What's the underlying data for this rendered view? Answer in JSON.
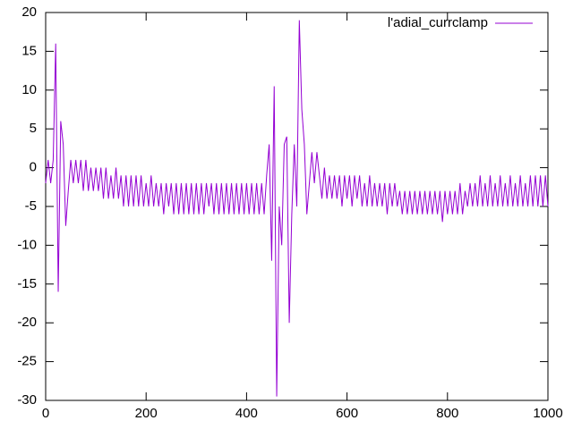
{
  "chart_data": {
    "type": "line",
    "legend": "top-right",
    "xlim": [
      0,
      1000
    ],
    "xticks": [
      0,
      200,
      400,
      600,
      800,
      1000
    ],
    "ylim": [
      -30,
      20
    ],
    "yticks": [
      -30,
      -25,
      -20,
      -15,
      -10,
      -5,
      0,
      5,
      10,
      15,
      20
    ],
    "x": [
      0,
      5,
      10,
      15,
      20,
      25,
      30,
      35,
      40,
      45,
      50,
      55,
      60,
      65,
      70,
      75,
      80,
      85,
      90,
      95,
      100,
      105,
      110,
      115,
      120,
      125,
      130,
      135,
      140,
      145,
      150,
      155,
      160,
      165,
      170,
      175,
      180,
      185,
      190,
      195,
      200,
      205,
      210,
      215,
      220,
      225,
      230,
      235,
      240,
      245,
      250,
      255,
      260,
      265,
      270,
      275,
      280,
      285,
      290,
      295,
      300,
      305,
      310,
      315,
      320,
      325,
      330,
      335,
      340,
      345,
      350,
      355,
      360,
      365,
      370,
      375,
      380,
      385,
      390,
      395,
      400,
      405,
      410,
      415,
      420,
      425,
      430,
      435,
      440,
      445,
      450,
      455,
      460,
      465,
      470,
      475,
      480,
      485,
      490,
      495,
      500,
      505,
      510,
      515,
      520,
      525,
      530,
      535,
      540,
      545,
      550,
      555,
      560,
      565,
      570,
      575,
      580,
      585,
      590,
      595,
      600,
      605,
      610,
      615,
      620,
      625,
      630,
      635,
      640,
      645,
      650,
      655,
      660,
      665,
      670,
      675,
      680,
      685,
      690,
      695,
      700,
      705,
      710,
      715,
      720,
      725,
      730,
      735,
      740,
      745,
      750,
      755,
      760,
      765,
      770,
      775,
      780,
      785,
      790,
      795,
      800,
      805,
      810,
      815,
      820,
      825,
      830,
      835,
      840,
      845,
      850,
      855,
      860,
      865,
      870,
      875,
      880,
      885,
      890,
      895,
      900,
      905,
      910,
      915,
      920,
      925,
      930,
      935,
      940,
      945,
      950,
      955,
      960,
      965,
      970,
      975,
      980,
      985,
      990,
      995,
      1000
    ],
    "series": [
      {
        "name": "l'adial_currclamp",
        "color": "#9400d3",
        "values": [
          -2,
          1,
          -2,
          1,
          16,
          -16,
          6,
          3,
          -7.5,
          -3,
          1,
          -2,
          1,
          -2,
          1,
          -3,
          1,
          -3,
          0,
          -3,
          0,
          -3,
          0,
          -4,
          0,
          -4,
          -1,
          -4,
          0,
          -4,
          -1,
          -5,
          -1,
          -5,
          -1,
          -5,
          -1,
          -5,
          -1,
          -5,
          -2,
          -5,
          -1,
          -5,
          -2,
          -5,
          -2,
          -6,
          -2,
          -5,
          -2,
          -6,
          -2,
          -6,
          -2,
          -6,
          -2,
          -6,
          -2,
          -6,
          -2,
          -6,
          -2,
          -6,
          -2,
          -5,
          -2,
          -6,
          -2,
          -6,
          -2,
          -6,
          -2,
          -6,
          -2,
          -6,
          -2,
          -6,
          -2,
          -6,
          -2,
          -6,
          -2,
          -6,
          -2,
          -6,
          -2,
          -6,
          -1,
          3,
          -12,
          10.5,
          -29.5,
          -5,
          -10,
          3,
          4,
          -20,
          -6,
          3,
          -5,
          19,
          7.5,
          3,
          -6,
          -2,
          2,
          -2,
          2,
          -1,
          -4,
          0,
          -4,
          -1,
          -4,
          -1,
          -4,
          -1,
          -5,
          -1,
          -4,
          -1,
          -5,
          -1,
          -4,
          -1,
          -5,
          -2,
          -5,
          -1,
          -5,
          -2,
          -5,
          -2,
          -5,
          -2,
          -6,
          -2,
          -5,
          -2,
          -5,
          -3,
          -6,
          -3,
          -6,
          -3,
          -6,
          -3,
          -6,
          -3,
          -6,
          -3,
          -6,
          -3,
          -6,
          -3,
          -6,
          -3,
          -7,
          -3,
          -6,
          -3,
          -6,
          -3,
          -6,
          -2,
          -6,
          -3,
          -5,
          -2,
          -5,
          -2,
          -5,
          -1,
          -5,
          -2,
          -5,
          -1,
          -5,
          -2,
          -5,
          -1,
          -5,
          -2,
          -5,
          -1,
          -5,
          -2,
          -5,
          -1,
          -5,
          -2,
          -5,
          -1,
          -5,
          -1,
          -5,
          -1,
          -5,
          -1,
          -5
        ]
      }
    ]
  }
}
